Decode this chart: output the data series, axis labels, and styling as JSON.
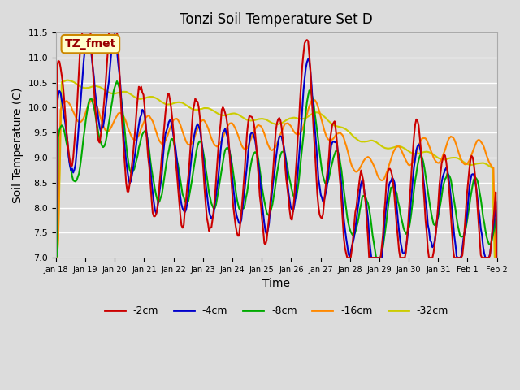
{
  "title": "Tonzi Soil Temperature Set D",
  "xlabel": "Time",
  "ylabel": "Soil Temperature (C)",
  "ylim": [
    7.0,
    11.5
  ],
  "yticks": [
    7.0,
    7.5,
    8.0,
    8.5,
    9.0,
    9.5,
    10.0,
    10.5,
    11.0,
    11.5
  ],
  "bg_color": "#dcdcdc",
  "legend_label": "TZ_fmet",
  "legend_box_color": "#ffffcc",
  "legend_box_edge": "#cc8800",
  "lines": {
    "-2cm": {
      "color": "#cc0000",
      "lw": 1.5
    },
    "-4cm": {
      "color": "#0000cc",
      "lw": 1.5
    },
    "-8cm": {
      "color": "#00aa00",
      "lw": 1.5
    },
    "-16cm": {
      "color": "#ff8800",
      "lw": 1.5
    },
    "-32cm": {
      "color": "#cccc00",
      "lw": 1.5
    }
  },
  "x_tick_labels": [
    "Jan 18",
    "Jan 19",
    "Jan 20",
    "Jan 21",
    "Jan 22",
    "Jan 23",
    "Jan 24",
    "Jan 25",
    "Jan 26",
    "Jan 27",
    "Jan 28",
    "Jan 29",
    "Jan 30",
    "Jan 31",
    "Feb 1",
    "Feb 2"
  ],
  "n_points": 384
}
